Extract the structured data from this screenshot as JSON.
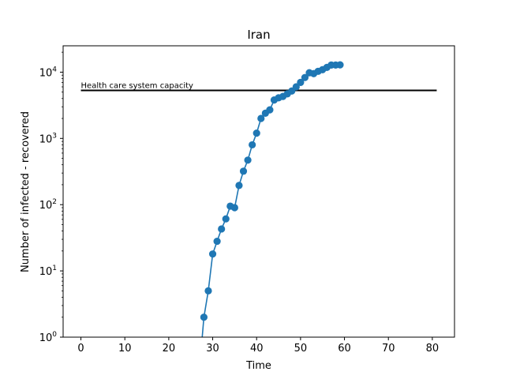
{
  "chart_data": {
    "type": "line",
    "title": "Iran",
    "xlabel": "Time",
    "ylabel": "Number of infected - recovered",
    "xlim": [
      -4.05,
      85.05
    ],
    "ylim": [
      1,
      25000
    ],
    "yscale": "log",
    "xticks": [
      0,
      10,
      20,
      30,
      40,
      50,
      60,
      70,
      80
    ],
    "yticks": [
      {
        "value": 1,
        "base": "10",
        "exp": "0"
      },
      {
        "value": 10,
        "base": "10",
        "exp": "1"
      },
      {
        "value": 100,
        "base": "10",
        "exp": "2"
      },
      {
        "value": 1000,
        "base": "10",
        "exp": "3"
      },
      {
        "value": 10000,
        "base": "10",
        "exp": "4"
      }
    ],
    "grid": false,
    "series": [
      {
        "color": "#1f77b4",
        "marker": "circle",
        "x": [
          27,
          28,
          29,
          30,
          31,
          32,
          33,
          34,
          35,
          36,
          37,
          38,
          39,
          40,
          41,
          42,
          43,
          44,
          45,
          46,
          47,
          48,
          49,
          50,
          51,
          52,
          53,
          54,
          55,
          56,
          57,
          58,
          59
        ],
        "y": [
          0,
          2,
          5,
          18,
          28,
          43,
          61,
          95,
          90,
          195,
          320,
          470,
          800,
          1200,
          2000,
          2400,
          2700,
          3800,
          4100,
          4300,
          4700,
          5200,
          6000,
          7000,
          8300,
          9800,
          9500,
          10300,
          10900,
          11800,
          12800,
          12800,
          12900
        ]
      }
    ],
    "reference_line": {
      "label": "Health care system capacity",
      "y": 5300,
      "x_start": 0,
      "x_end": 81,
      "color": "#000000"
    }
  }
}
